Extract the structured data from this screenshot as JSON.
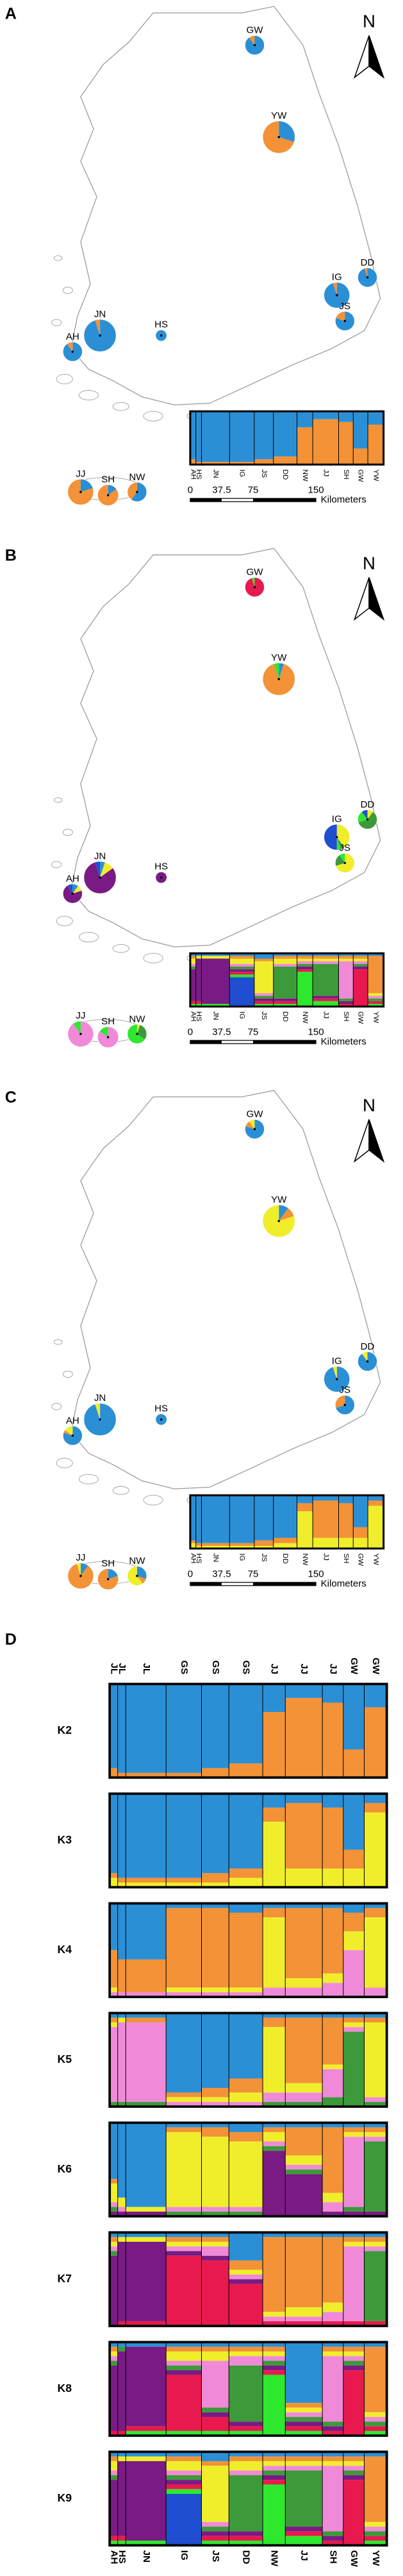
{
  "panels": [
    {
      "label": "A",
      "north": "N",
      "scale_labels": [
        "0",
        "37.5",
        "75",
        "150"
      ],
      "scale_unit": "Kilometers",
      "colors": [
        "#2b8fd6",
        "#f39237"
      ],
      "pies": [
        {
          "label": "GW",
          "values": [
            0.9,
            0.1
          ]
        },
        {
          "label": "YW",
          "values": [
            0.3,
            0.7
          ]
        },
        {
          "label": "DD",
          "values": [
            0.95,
            0.05
          ]
        },
        {
          "label": "IG",
          "values": [
            0.95,
            0.05
          ]
        },
        {
          "label": "JS",
          "values": [
            0.8,
            0.2
          ]
        },
        {
          "label": "JN",
          "values": [
            0.95,
            0.05
          ]
        },
        {
          "label": "AH",
          "values": [
            0.9,
            0.1
          ]
        },
        {
          "label": "HS",
          "values": [
            1,
            0
          ]
        },
        {
          "label": "JJ",
          "values": [
            0.2,
            0.8
          ]
        },
        {
          "label": "SH",
          "values": [
            0.15,
            0.85
          ]
        },
        {
          "label": "NW",
          "values": [
            0.6,
            0.4
          ]
        }
      ],
      "inset_labels": [
        "AH",
        "HS",
        "JN",
        "IG",
        "JS",
        "DD",
        "NW",
        "JJ",
        "SH",
        "GW",
        "YW"
      ]
    },
    {
      "label": "B",
      "north": "N",
      "scale_labels": [
        "0",
        "37.5",
        "75",
        "150"
      ],
      "scale_unit": "Kilometers",
      "colors": [
        "#2b8fd6",
        "#f39237",
        "#f0ee2a",
        "#f08ad8",
        "#3d9a3a",
        "#7a1a84",
        "#e8194e",
        "#2ee82e",
        "#1f4fd0"
      ],
      "pies": [
        {
          "label": "GW",
          "values": [
            0,
            0,
            0,
            0,
            0,
            0,
            0.95,
            0.05,
            0
          ]
        },
        {
          "label": "YW",
          "values": [
            0.05,
            0.9,
            0,
            0,
            0,
            0,
            0,
            0.05,
            0
          ]
        },
        {
          "label": "DD",
          "values": [
            0,
            0,
            0.1,
            0,
            0.6,
            0,
            0,
            0.2,
            0.1
          ]
        },
        {
          "label": "IG",
          "values": [
            0,
            0,
            0.4,
            0,
            0.05,
            0,
            0,
            0.05,
            0.5
          ]
        },
        {
          "label": "JS",
          "values": [
            0,
            0,
            0.7,
            0,
            0.2,
            0,
            0,
            0.1,
            0
          ]
        },
        {
          "label": "JN",
          "values": [
            0.05,
            0,
            0.1,
            0,
            0,
            0.8,
            0,
            0,
            0.05
          ]
        },
        {
          "label": "AH",
          "values": [
            0.1,
            0,
            0.1,
            0,
            0,
            0.7,
            0,
            0,
            0.1
          ]
        },
        {
          "label": "HS",
          "values": [
            0,
            0,
            0,
            0,
            0,
            1,
            0,
            0,
            0
          ]
        },
        {
          "label": "JJ",
          "values": [
            0,
            0,
            0,
            0.9,
            0,
            0,
            0,
            0.1,
            0
          ]
        },
        {
          "label": "SH",
          "values": [
            0,
            0,
            0,
            0.85,
            0,
            0,
            0,
            0.15,
            0
          ]
        },
        {
          "label": "NW",
          "values": [
            0,
            0,
            0.05,
            0,
            0.3,
            0,
            0,
            0.65,
            0
          ]
        }
      ],
      "inset_labels": [
        "AH",
        "HS",
        "JN",
        "IG",
        "JS",
        "DD",
        "NW",
        "JJ",
        "SH",
        "GW",
        "YW"
      ]
    },
    {
      "label": "C",
      "north": "N",
      "scale_labels": [
        "0",
        "37.5",
        "75",
        "150"
      ],
      "scale_unit": "Kilometers",
      "colors": [
        "#2b8fd6",
        "#f39237",
        "#f0ee2a"
      ],
      "pies": [
        {
          "label": "GW",
          "values": [
            0.8,
            0.1,
            0.1
          ]
        },
        {
          "label": "YW",
          "values": [
            0.1,
            0.1,
            0.8
          ]
        },
        {
          "label": "DD",
          "values": [
            0.9,
            0,
            0.1
          ]
        },
        {
          "label": "IG",
          "values": [
            0.95,
            0,
            0.05
          ]
        },
        {
          "label": "JS",
          "values": [
            0.7,
            0.3,
            0
          ]
        },
        {
          "label": "JN",
          "values": [
            0.95,
            0,
            0.05
          ]
        },
        {
          "label": "AH",
          "values": [
            0.8,
            0.05,
            0.15
          ]
        },
        {
          "label": "HS",
          "values": [
            1,
            0,
            0
          ]
        },
        {
          "label": "JJ",
          "values": [
            0.1,
            0.85,
            0.05
          ]
        },
        {
          "label": "SH",
          "values": [
            0.2,
            0.8,
            0
          ]
        },
        {
          "label": "NW",
          "values": [
            0.3,
            0.1,
            0.6
          ]
        }
      ],
      "inset_labels": [
        "AH",
        "HS",
        "JN",
        "IG",
        "JS",
        "DD",
        "NW",
        "JJ",
        "SH",
        "GW",
        "YW"
      ]
    }
  ],
  "structure": {
    "label": "D",
    "top_labels": [
      "JL",
      "JL",
      "JL",
      "GS",
      "GS",
      "GS",
      "JJ",
      "JJ",
      "JJ",
      "GW",
      "GW"
    ],
    "bottom_labels": [
      "AH",
      "HS",
      "JN",
      "IG",
      "JS",
      "DD",
      "NW",
      "JJ",
      "SH",
      "GW",
      "YW"
    ],
    "colors": [
      "#2b8fd6",
      "#f39237",
      "#f0ee2a",
      "#f08ad8",
      "#3d9a3a",
      "#7a1a84",
      "#e8194e",
      "#2ee82e",
      "#1f4fd0"
    ],
    "rows": [
      {
        "label": "K2",
        "values": [
          [
            0.9,
            0.1
          ],
          [
            0.95,
            0.05
          ],
          [
            0.95,
            0.05
          ],
          [
            0.95,
            0.05
          ],
          [
            0.9,
            0.1
          ],
          [
            0.85,
            0.15
          ],
          [
            0.3,
            0.7
          ],
          [
            0.15,
            0.85
          ],
          [
            0.2,
            0.8
          ],
          [
            0.7,
            0.3
          ],
          [
            0.25,
            0.75
          ]
        ]
      },
      {
        "label": "K3",
        "values": [
          [
            0.85,
            0.05,
            0.1
          ],
          [
            0.9,
            0.05,
            0.05
          ],
          [
            0.9,
            0.05,
            0.05
          ],
          [
            0.9,
            0.05,
            0.05
          ],
          [
            0.85,
            0.1,
            0.05
          ],
          [
            0.8,
            0.1,
            0.1
          ],
          [
            0.15,
            0.15,
            0.7
          ],
          [
            0.1,
            0.7,
            0.2
          ],
          [
            0.15,
            0.65,
            0.2
          ],
          [
            0.6,
            0.2,
            0.2
          ],
          [
            0.1,
            0.1,
            0.8
          ]
        ]
      },
      {
        "label": "K4",
        "values": [
          [
            0.5,
            0.4,
            0.05,
            0.05
          ],
          [
            0.6,
            0.35,
            0,
            0.05
          ],
          [
            0.6,
            0.35,
            0,
            0.05
          ],
          [
            0.05,
            0.85,
            0.05,
            0.05
          ],
          [
            0.05,
            0.85,
            0.05,
            0.05
          ],
          [
            0.1,
            0.8,
            0.05,
            0.05
          ],
          [
            0.05,
            0.1,
            0.75,
            0.1
          ],
          [
            0.05,
            0.75,
            0.1,
            0.1
          ],
          [
            0.05,
            0.7,
            0.1,
            0.15
          ],
          [
            0.1,
            0.2,
            0.2,
            0.5
          ],
          [
            0.05,
            0.1,
            0.75,
            0.1
          ]
        ]
      },
      {
        "label": "K5",
        "values": [
          [
            0.05,
            0.05,
            0.05,
            0.8,
            0.05
          ],
          [
            0.05,
            0,
            0.05,
            0.85,
            0.05
          ],
          [
            0.05,
            0.05,
            0,
            0.85,
            0.05
          ],
          [
            0.85,
            0.05,
            0.05,
            0.05,
            0
          ],
          [
            0.8,
            0.1,
            0.05,
            0.05,
            0
          ],
          [
            0.7,
            0.15,
            0.1,
            0.05,
            0
          ],
          [
            0.05,
            0.1,
            0.7,
            0.1,
            0.05
          ],
          [
            0.05,
            0.7,
            0.1,
            0.1,
            0.05
          ],
          [
            0.05,
            0.5,
            0.05,
            0.3,
            0.1
          ],
          [
            0.05,
            0.05,
            0.05,
            0.05,
            0.8
          ],
          [
            0.05,
            0.05,
            0.8,
            0.05,
            0.05
          ]
        ]
      },
      {
        "label": "K6",
        "values": [
          [
            0.6,
            0.05,
            0.2,
            0.05,
            0.05,
            0.05
          ],
          [
            0.8,
            0,
            0.1,
            0.05,
            0,
            0.05
          ],
          [
            0.9,
            0,
            0.05,
            0,
            0,
            0.05
          ],
          [
            0.05,
            0.05,
            0.8,
            0.05,
            0.05,
            0
          ],
          [
            0.05,
            0.1,
            0.75,
            0.05,
            0.05,
            0
          ],
          [
            0.1,
            0.1,
            0.7,
            0.05,
            0.05,
            0
          ],
          [
            0.05,
            0.05,
            0.1,
            0.05,
            0.05,
            0.7
          ],
          [
            0.05,
            0.3,
            0.1,
            0.05,
            0.05,
            0.45
          ],
          [
            0.05,
            0.7,
            0.1,
            0.1,
            0,
            0.05
          ],
          [
            0.05,
            0.05,
            0.05,
            0.75,
            0.05,
            0.05
          ],
          [
            0.05,
            0.05,
            0.05,
            0.05,
            0.75,
            0.05
          ]
        ]
      },
      {
        "label": "K7",
        "values": [
          [
            0.05,
            0.05,
            0.05,
            0.05,
            0.05,
            0.75,
            0
          ],
          [
            0.05,
            0,
            0.05,
            0,
            0,
            0.85,
            0.05
          ],
          [
            0.05,
            0,
            0.05,
            0,
            0,
            0.85,
            0.05
          ],
          [
            0.05,
            0.05,
            0.05,
            0.05,
            0,
            0.05,
            0.75
          ],
          [
            0.05,
            0.05,
            0.05,
            0.1,
            0,
            0.05,
            0.7
          ],
          [
            0.3,
            0.1,
            0.05,
            0.05,
            0,
            0.05,
            0.45
          ],
          [
            0.05,
            0.8,
            0.05,
            0.05,
            0,
            0,
            0.05
          ],
          [
            0.05,
            0.75,
            0.1,
            0.05,
            0,
            0,
            0.05
          ],
          [
            0.05,
            0.7,
            0.1,
            0.1,
            0,
            0,
            0.05
          ],
          [
            0.05,
            0.05,
            0.05,
            0.8,
            0,
            0,
            0.05
          ],
          [
            0.05,
            0.05,
            0.05,
            0.05,
            0.75,
            0,
            0.05
          ]
        ]
      },
      {
        "label": "K8",
        "values": [
          [
            0.05,
            0.05,
            0.05,
            0.05,
            0.05,
            0.7,
            0.05,
            0
          ],
          [
            0.05,
            0,
            0,
            0,
            0.05,
            0.85,
            0.05,
            0
          ],
          [
            0.05,
            0,
            0,
            0,
            0,
            0.85,
            0.05,
            0.05
          ],
          [
            0.05,
            0.05,
            0.1,
            0.05,
            0.05,
            0.05,
            0.6,
            0.05
          ],
          [
            0.05,
            0.05,
            0.1,
            0.5,
            0.05,
            0.05,
            0.15,
            0.05
          ],
          [
            0.05,
            0.05,
            0.05,
            0.1,
            0.6,
            0.05,
            0.05,
            0.05
          ],
          [
            0.05,
            0.05,
            0.05,
            0.05,
            0.05,
            0.05,
            0.05,
            0.65
          ],
          [
            0.65,
            0.05,
            0.05,
            0.05,
            0.05,
            0.05,
            0.05,
            0.05
          ],
          [
            0.05,
            0.05,
            0.05,
            0.7,
            0.05,
            0.05,
            0.05,
            0
          ],
          [
            0.05,
            0.05,
            0.05,
            0.05,
            0.05,
            0.05,
            0.7,
            0
          ],
          [
            0.05,
            0.7,
            0.05,
            0.05,
            0.05,
            0,
            0.05,
            0.05
          ]
        ]
      },
      {
        "label": "K9",
        "values": [
          [
            0.05,
            0.05,
            0.1,
            0.05,
            0.05,
            0.6,
            0.05,
            0.05,
            0
          ],
          [
            0.05,
            0,
            0.05,
            0,
            0,
            0.8,
            0.05,
            0.05,
            0
          ],
          [
            0.05,
            0,
            0.05,
            0,
            0,
            0.85,
            0,
            0.05,
            0
          ],
          [
            0.05,
            0.05,
            0.1,
            0.05,
            0.05,
            0.05,
            0.05,
            0.05,
            0.55
          ],
          [
            0.1,
            0.05,
            0.6,
            0.05,
            0.05,
            0.05,
            0.05,
            0.05,
            0
          ],
          [
            0.05,
            0.05,
            0.1,
            0.05,
            0.6,
            0.05,
            0.05,
            0.05,
            0
          ],
          [
            0.05,
            0.05,
            0.05,
            0.05,
            0.05,
            0.05,
            0.05,
            0.65,
            0
          ],
          [
            0.05,
            0.05,
            0.05,
            0.05,
            0.6,
            0.05,
            0.05,
            0.1,
            0
          ],
          [
            0.05,
            0.05,
            0.05,
            0.7,
            0.05,
            0.05,
            0.05,
            0,
            0
          ],
          [
            0.05,
            0.05,
            0.05,
            0.05,
            0.05,
            0.05,
            0.7,
            0,
            0
          ],
          [
            0.05,
            0.7,
            0.05,
            0.05,
            0.05,
            0,
            0.05,
            0.05,
            0
          ]
        ]
      }
    ]
  }
}
